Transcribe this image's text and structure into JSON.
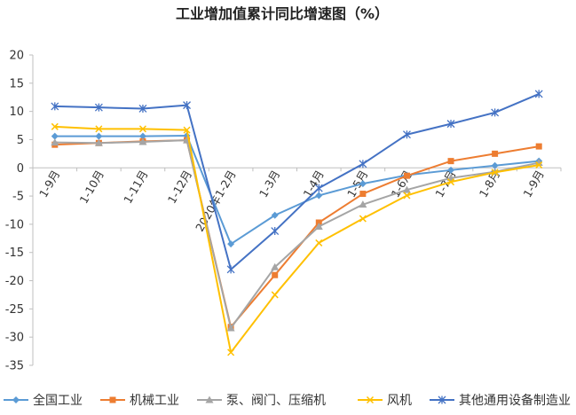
{
  "chart_data": {
    "type": "line",
    "title": "工业增加值累计同比增速图（%）",
    "categories": [
      "1-9月",
      "1-10月",
      "1-11月",
      "1-12月",
      "2020年1-2月",
      "1-3月",
      "1-4月",
      "1-5月",
      "1-6月",
      "1-7月",
      "1-8月",
      "1-9月"
    ],
    "ylim": [
      -35,
      20
    ],
    "yticks": [
      20,
      15,
      10,
      5,
      0,
      -5,
      -10,
      -15,
      -20,
      -25,
      -30,
      -35
    ],
    "grid": false,
    "legend": "bottom",
    "series": [
      {
        "name": "全国工业",
        "color": "#5B9BD5",
        "marker": "diamond",
        "values": [
          5.6,
          5.6,
          5.6,
          5.7,
          -13.5,
          -8.4,
          -4.9,
          -2.8,
          -1.3,
          -0.4,
          0.4,
          1.2
        ]
      },
      {
        "name": "机械工业",
        "color": "#ED7D31",
        "marker": "square",
        "values": [
          4.1,
          4.4,
          4.7,
          4.9,
          -28.2,
          -19.0,
          -9.7,
          -4.6,
          -1.4,
          1.2,
          2.5,
          3.8
        ]
      },
      {
        "name": "泵、阀门、压缩机",
        "color": "#A5A5A5",
        "marker": "triangle",
        "values": [
          4.5,
          4.4,
          4.6,
          4.9,
          -28.4,
          -17.6,
          -10.4,
          -6.5,
          -3.9,
          -1.8,
          -0.7,
          0.9
        ]
      },
      {
        "name": "风机",
        "color": "#FFC000",
        "marker": "x",
        "values": [
          7.3,
          6.9,
          6.9,
          6.7,
          -32.7,
          -22.5,
          -13.3,
          -9.0,
          -4.9,
          -2.5,
          -0.8,
          0.5
        ]
      },
      {
        "name": "其他通用设备制造业",
        "color": "#4472C4",
        "marker": "star",
        "values": [
          10.9,
          10.7,
          10.5,
          11.1,
          -18.0,
          -11.2,
          -3.6,
          0.7,
          5.9,
          7.8,
          9.8,
          13.1
        ]
      }
    ]
  }
}
